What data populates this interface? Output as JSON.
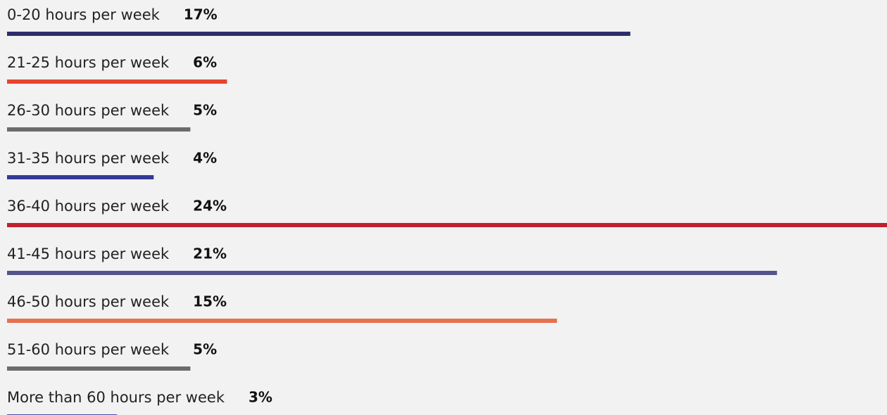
{
  "chart_data": {
    "type": "bar",
    "orientation": "horizontal",
    "categories": [
      "0-20 hours per week",
      "21-25 hours per week",
      "26-30 hours per week",
      "31-35 hours per week",
      "36-40 hours per week",
      "41-45 hours per week",
      "46-50 hours per week",
      "51-60 hours per week",
      "More than 60 hours per week"
    ],
    "values": [
      17,
      6,
      5,
      4,
      24,
      21,
      15,
      5,
      3
    ],
    "value_labels": [
      "17%",
      "6%",
      "5%",
      "4%",
      "24%",
      "21%",
      "15%",
      "5%",
      "3%"
    ],
    "colors": [
      "#2e2d6b",
      "#e8432f",
      "#6b6b6e",
      "#333a96",
      "#c0202f",
      "#55548a",
      "#e8704f",
      "#6b6b6e",
      "#4a4aa0"
    ]
  }
}
